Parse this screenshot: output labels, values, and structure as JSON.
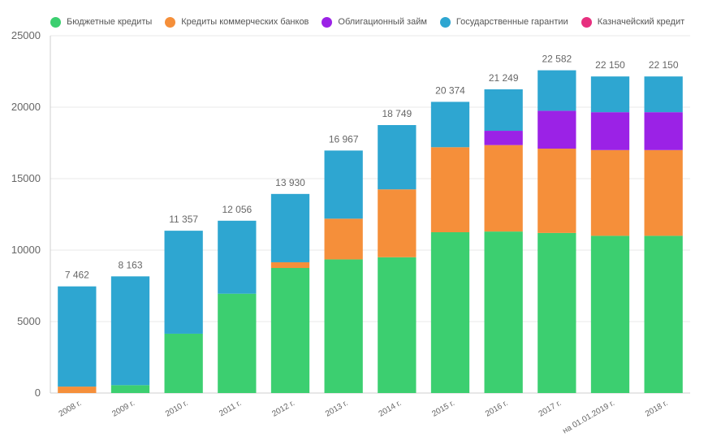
{
  "chart_data": {
    "type": "bar",
    "stacked": true,
    "title": "",
    "xlabel": "",
    "ylabel": "",
    "ylim": [
      0,
      25000
    ],
    "yticks": [
      0,
      5000,
      10000,
      15000,
      20000,
      25000
    ],
    "ytick_labels": [
      "0",
      "5000",
      "10000",
      "15000",
      "20000",
      "25000"
    ],
    "grid": true,
    "legend_position": "top",
    "categories": [
      "2008 г.",
      "2009 г.",
      "2010 г.",
      "2011 г.",
      "2012 г.",
      "2013 г.",
      "2014 г.",
      "2015 г.",
      "2016 г.",
      "2017 г.",
      "на 01.01.2019 г.",
      "2018 г."
    ],
    "totals": [
      7462,
      8163,
      11357,
      12056,
      13930,
      16967,
      18749,
      20374,
      21249,
      22582,
      22150,
      22150
    ],
    "total_labels": [
      "7 462",
      "8 163",
      "11 357",
      "12 056",
      "13 930",
      "16 967",
      "18 749",
      "20 374",
      "21 249",
      "22 582",
      "22 150",
      "22 150"
    ],
    "series": [
      {
        "name": "Бюджетные кредиты",
        "color": "#3ccf70",
        "values": [
          0,
          550,
          4150,
          6950,
          8750,
          9350,
          9500,
          11250,
          11300,
          11200,
          11000,
          11000
        ]
      },
      {
        "name": "Кредиты коммерческих банков",
        "color": "#f58f3a",
        "values": [
          450,
          0,
          0,
          0,
          400,
          2850,
          4750,
          5950,
          6050,
          5900,
          6000,
          6000
        ]
      },
      {
        "name": "Облигационный займ",
        "color": "#9b22e6",
        "values": [
          0,
          0,
          0,
          0,
          0,
          0,
          0,
          0,
          1000,
          2650,
          2650,
          2650
        ]
      },
      {
        "name": "Государственные гарантии",
        "color": "#2ea6d1",
        "values": [
          7012,
          7613,
          7207,
          5106,
          4780,
          4767,
          4499,
          3174,
          2899,
          2832,
          2500,
          2500
        ]
      },
      {
        "name": "Казначейский кредит",
        "color": "#e7307f",
        "values": [
          0,
          0,
          0,
          0,
          0,
          0,
          0,
          0,
          0,
          0,
          0,
          0
        ]
      }
    ]
  }
}
